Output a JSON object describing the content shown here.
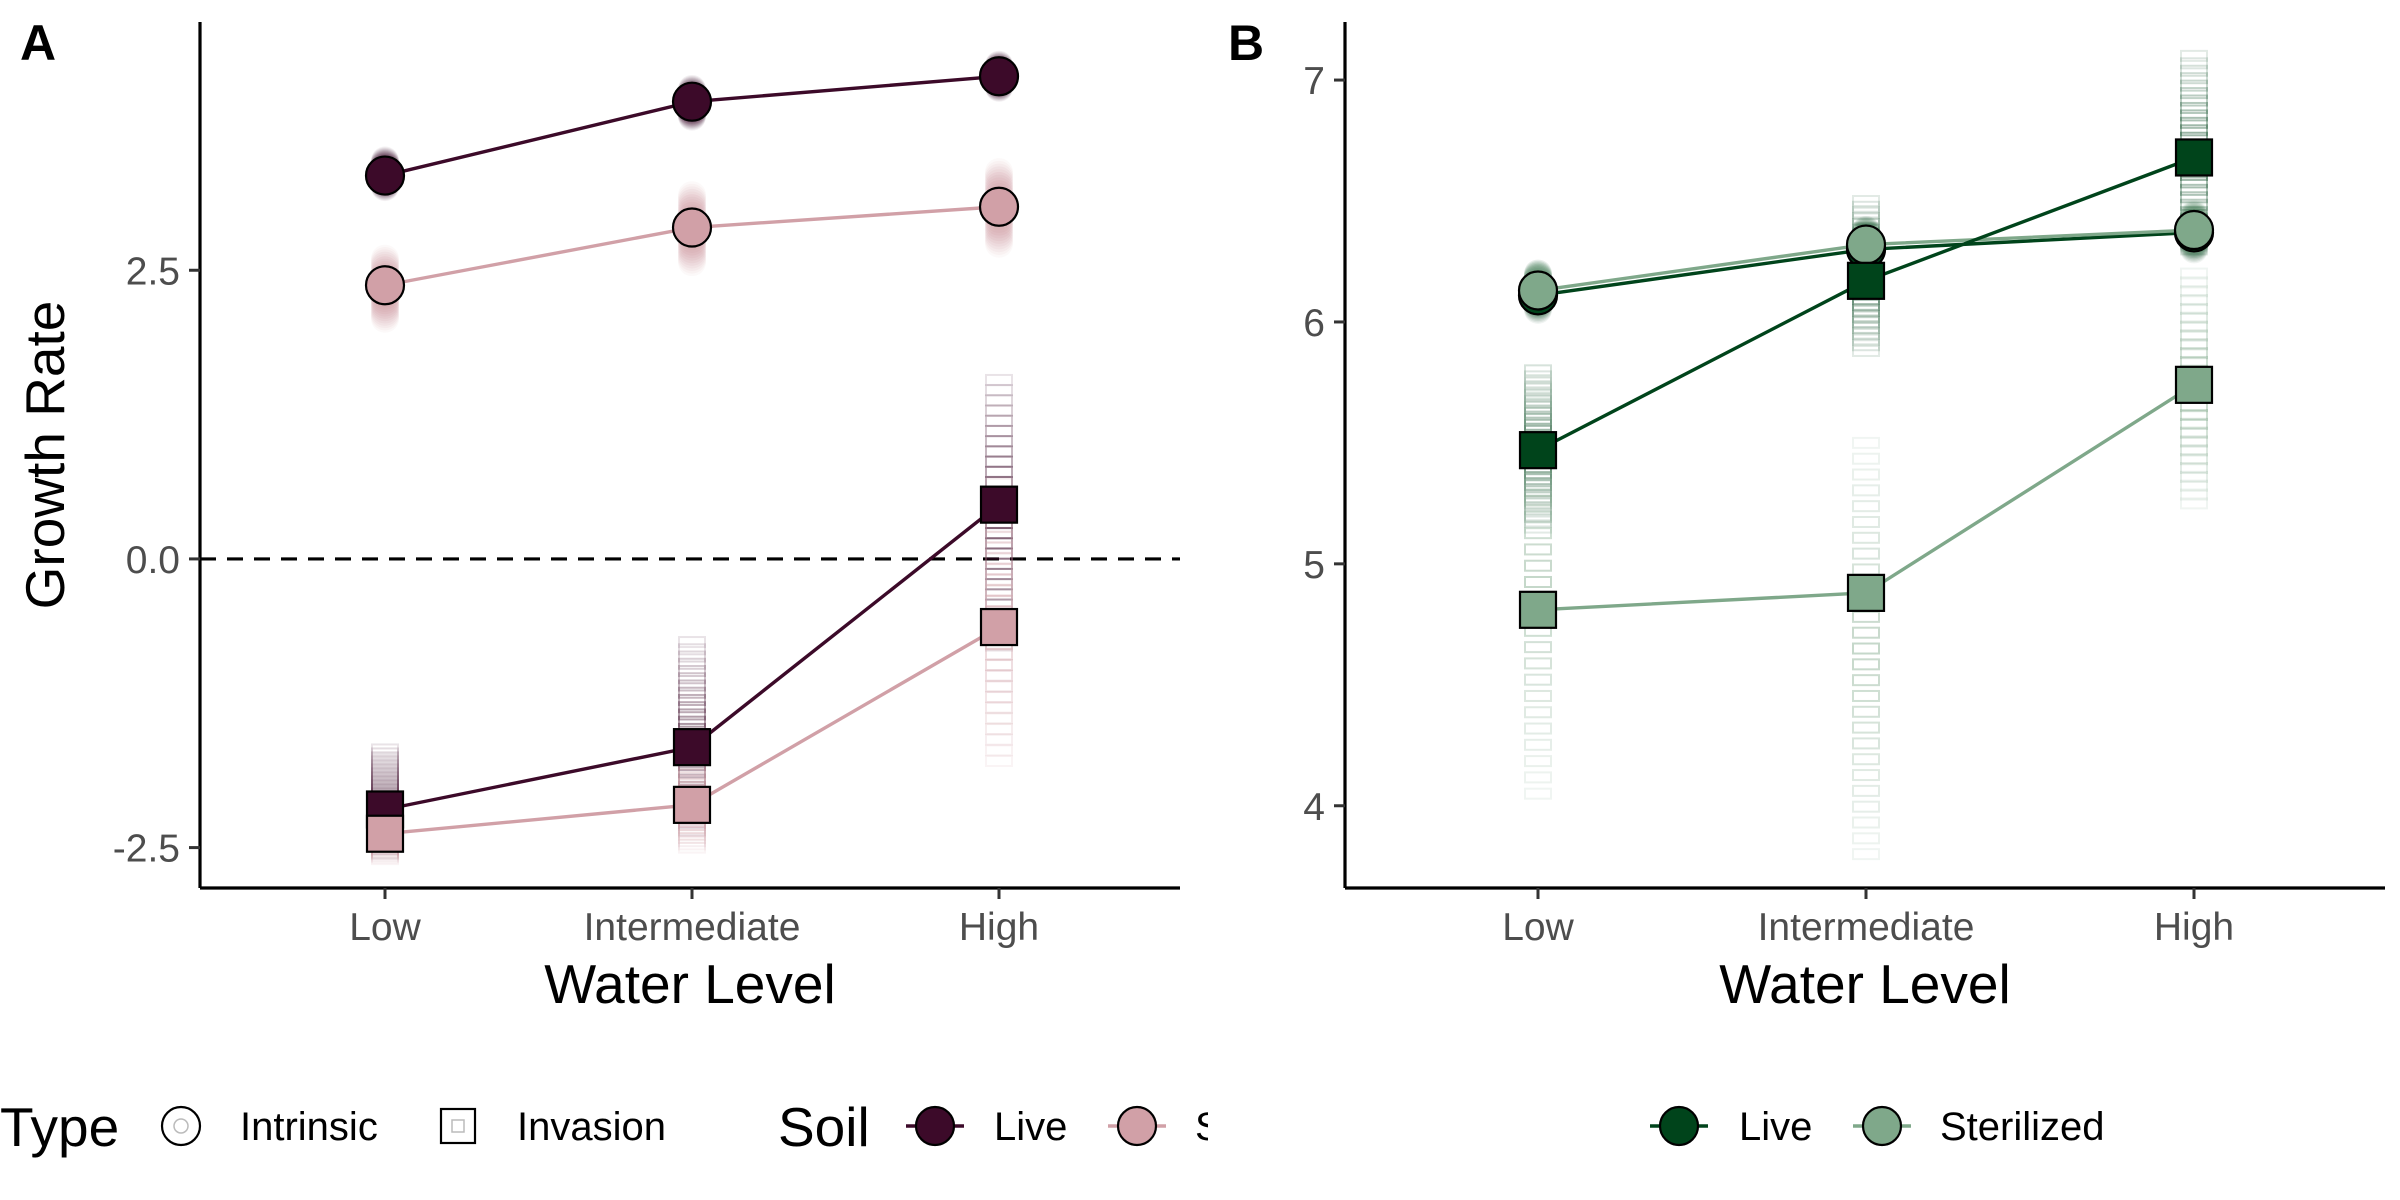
{
  "colors": {
    "a_live": "#3c0a29",
    "a_sterilized": "#d1a0a7",
    "b_live": "#00441b",
    "b_sterilized": "#7fa88a",
    "axis": "#000000",
    "tick_text": "#4d4d4d"
  },
  "legend": {
    "type_title": "Type",
    "type_items": [
      {
        "label": "Intrinsic",
        "shape": "circle"
      },
      {
        "label": "Invasion",
        "shape": "square"
      }
    ],
    "a_soil_title": "Soil",
    "a_soil_items": [
      {
        "label": "Live",
        "color": "#3c0a29"
      },
      {
        "label": "S",
        "color": "#d1a0a7"
      }
    ],
    "b_soil_items": [
      {
        "label": "Live",
        "color": "#00441b"
      },
      {
        "label": "Sterilized",
        "color": "#7fa88a"
      }
    ]
  },
  "chart_data": [
    {
      "panel_label": "A",
      "type": "line",
      "xlabel": "Water Level",
      "ylabel": "Growth Rate",
      "categories": [
        "Low",
        "Intermediate",
        "High"
      ],
      "ylim": [
        -2.85,
        4.65
      ],
      "yticks": [
        -2.5,
        0.0,
        2.5
      ],
      "ytick_labels": [
        "-2.5",
        "0.0",
        "2.5"
      ],
      "reference_line": {
        "y": 0,
        "style": "dashed"
      },
      "grid": false,
      "series": [
        {
          "soil": "Live",
          "type": "Intrinsic",
          "color": "#3c0a29",
          "marker": "circle",
          "values": [
            3.32,
            3.96,
            4.18
          ],
          "spread": [
            [
              3.22,
              3.45
            ],
            [
              3.83,
              4.07
            ],
            [
              4.08,
              4.28
            ]
          ]
        },
        {
          "soil": "Sterilized",
          "type": "Intrinsic",
          "color": "#d1a0a7",
          "marker": "circle",
          "values": [
            2.37,
            2.87,
            3.05
          ],
          "spread": [
            [
              2.08,
              2.6
            ],
            [
              2.57,
              3.15
            ],
            [
              2.73,
              3.35
            ]
          ]
        },
        {
          "soil": "Live",
          "type": "Invasion",
          "color": "#3c0a29",
          "marker": "square",
          "values": [
            -2.17,
            -1.63,
            0.47
          ],
          "spread": [
            [
              -2.55,
              -1.65
            ],
            [
              -2.35,
              -0.72
            ],
            [
              -0.75,
              1.55
            ]
          ]
        },
        {
          "soil": "Sterilized",
          "type": "Invasion",
          "color": "#d1a0a7",
          "marker": "square",
          "values": [
            -2.38,
            -2.13,
            -0.59
          ],
          "spread": [
            [
              -2.6,
              -2.2
            ],
            [
              -2.5,
              -1.78
            ],
            [
              -1.75,
              0.65
            ]
          ]
        }
      ]
    },
    {
      "panel_label": "B",
      "type": "line",
      "xlabel": "Water Level",
      "ylabel": "",
      "categories": [
        "Low",
        "Intermediate",
        "High"
      ],
      "ylim": [
        3.66,
        7.24
      ],
      "yticks": [
        4,
        5,
        6,
        7
      ],
      "ytick_labels": [
        "4",
        "5",
        "6",
        "7"
      ],
      "grid": false,
      "series": [
        {
          "soil": "Live",
          "type": "Intrinsic",
          "color": "#00441b",
          "marker": "circle",
          "values": [
            6.11,
            6.3,
            6.37
          ],
          "spread": [
            [
              6.05,
              6.2
            ],
            [
              6.24,
              6.38
            ],
            [
              6.3,
              6.44
            ]
          ]
        },
        {
          "soil": "Sterilized",
          "type": "Intrinsic",
          "color": "#7fa88a",
          "marker": "circle",
          "values": [
            6.13,
            6.32,
            6.38
          ],
          "spread": [
            [
              6.07,
              6.2
            ],
            [
              6.26,
              6.38
            ],
            [
              6.32,
              6.45
            ]
          ]
        },
        {
          "soil": "Live",
          "type": "Invasion",
          "color": "#00441b",
          "marker": "square",
          "values": [
            5.47,
            6.17,
            6.68
          ],
          "spread": [
            [
              5.15,
              5.8
            ],
            [
              5.88,
              6.5
            ],
            [
              6.3,
              7.1
            ]
          ]
        },
        {
          "soil": "Sterilized",
          "type": "Invasion",
          "color": "#7fa88a",
          "marker": "square",
          "values": [
            4.81,
            4.88,
            5.74
          ],
          "spread": [
            [
              4.05,
              5.8
            ],
            [
              3.8,
              5.5
            ],
            [
              5.25,
              6.2
            ]
          ]
        }
      ]
    }
  ]
}
